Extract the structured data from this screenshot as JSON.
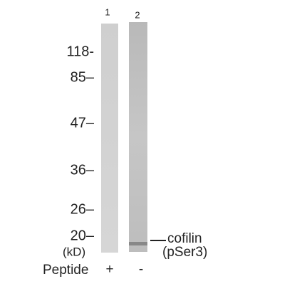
{
  "lanes": [
    "1",
    "2"
  ],
  "markers": [
    "118-",
    "85–",
    "47–",
    "36–",
    "26–",
    "20–"
  ],
  "unit": "(kD)",
  "treatment": {
    "label": "Peptide",
    "values": [
      "+",
      "-"
    ]
  },
  "band": {
    "lines": [
      "cofilin",
      "(pSer3)"
    ]
  }
}
